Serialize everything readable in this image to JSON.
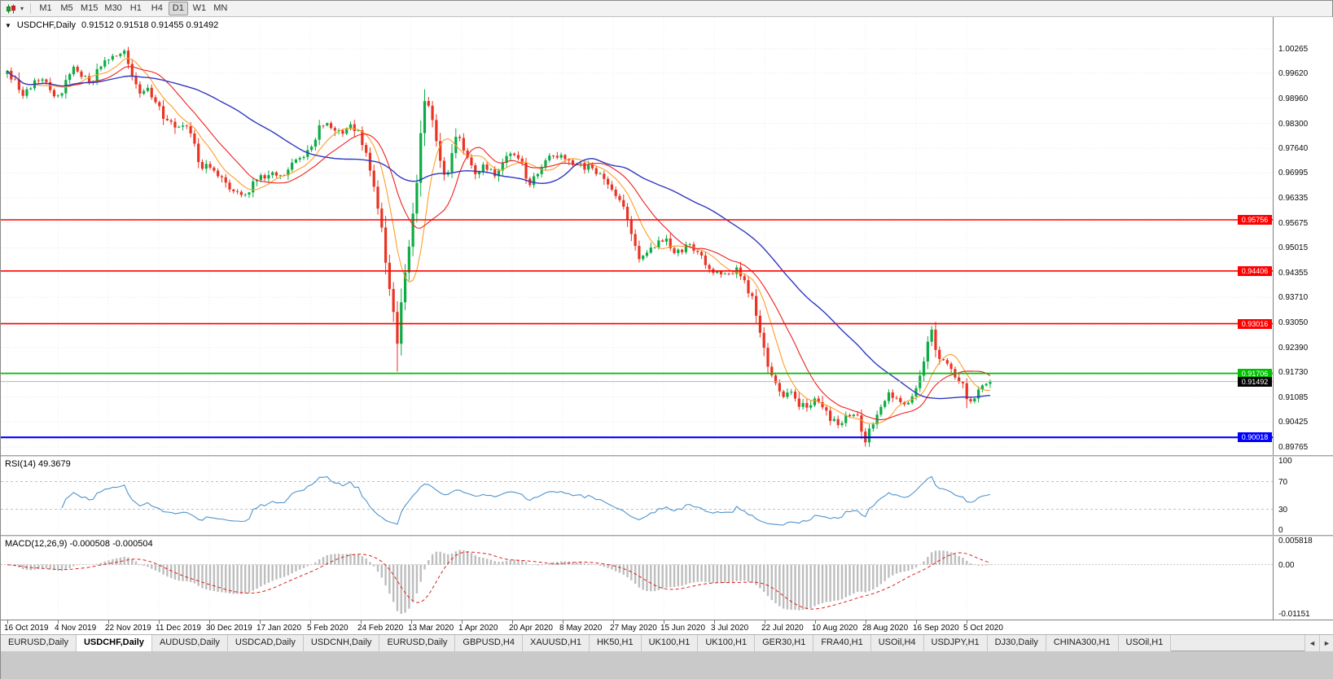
{
  "icons": {
    "collapse_caret": "▼",
    "dropdown_caret": "▾",
    "scroll_left": "◄",
    "scroll_right": "►"
  },
  "toolbar": {
    "timeframes": [
      "M1",
      "M5",
      "M15",
      "M30",
      "H1",
      "H4",
      "D1",
      "W1",
      "MN"
    ],
    "active": "D1"
  },
  "chart": {
    "title": "USDCHF,Daily",
    "ohlc": "0.91512 0.91518 0.91455 0.91492",
    "price_axis": [
      "1.00265",
      "0.99620",
      "0.98960",
      "0.98300",
      "0.97640",
      "0.96995",
      "0.96335",
      "0.95675",
      "0.95015",
      "0.94355",
      "0.93710",
      "0.93050",
      "0.92390",
      "0.91730",
      "0.91085",
      "0.90425",
      "0.89765"
    ]
  },
  "rsi": {
    "label": "RSI(14) 49.3679",
    "period": 14,
    "current": 49.3679,
    "axis": [
      "100",
      "70",
      "30",
      "0"
    ],
    "levels": [
      70,
      30
    ]
  },
  "macd": {
    "label": "MACD(12,26,9) -0.000508 -0.000504",
    "fast": 12,
    "slow": 26,
    "signal": 9,
    "current": [
      -0.000508,
      -0.000504
    ],
    "axis": [
      "0.005818",
      "0.00",
      "-0.01151"
    ]
  },
  "time_axis": [
    "16 Oct 2019",
    "4 Nov 2019",
    "22 Nov 2019",
    "11 Dec 2019",
    "30 Dec 2019",
    "17 Jan 2020",
    "5 Feb 2020",
    "24 Feb 2020",
    "13 Mar 2020",
    "1 Apr 2020",
    "20 Apr 2020",
    "8 May 2020",
    "27 May 2020",
    "15 Jun 2020",
    "3 Jul 2020",
    "22 Jul 2020",
    "10 Aug 2020",
    "28 Aug 2020",
    "16 Sep 2020",
    "5 Oct 2020"
  ],
  "tabs": {
    "items": [
      "EURUSD,Daily",
      "USDCHF,Daily",
      "AUDUSD,Daily",
      "USDCAD,Daily",
      "USDCNH,Daily",
      "EURUSD,Daily",
      "GBPUSD,H4",
      "XAUUSD,H1",
      "HK50,H1",
      "UK100,H1",
      "UK100,H1",
      "GER30,H1",
      "FRA40,H1",
      "USOil,H4",
      "USDJPY,H1",
      "DJ30,Daily",
      "CHINA300,H1",
      "USOil,H1"
    ],
    "active_index": 1
  },
  "chart_data": {
    "type": "candlestick",
    "symbol": "USDCHF",
    "period": "Daily",
    "ohlc": {
      "open": 0.91512,
      "high": 0.91518,
      "low": 0.91455,
      "close": 0.91492
    },
    "current_price": 0.91492,
    "current_price_label": "0.91492",
    "price_range_shown": [
      0.8955,
      1.01103
    ],
    "n_candles": 253,
    "close_path": [
      [
        0.0,
        0.996
      ],
      [
        0.01,
        0.993
      ],
      [
        0.018,
        0.9905
      ],
      [
        0.027,
        0.9945
      ],
      [
        0.035,
        0.9952
      ],
      [
        0.043,
        0.992
      ],
      [
        0.051,
        0.9895
      ],
      [
        0.06,
        0.994
      ],
      [
        0.068,
        0.9975
      ],
      [
        0.076,
        0.9955
      ],
      [
        0.084,
        0.9938
      ],
      [
        0.093,
        0.997
      ],
      [
        0.101,
        1.0005
      ],
      [
        0.11,
        1.0015
      ],
      [
        0.118,
        1.0022
      ],
      [
        0.126,
        0.996
      ],
      [
        0.134,
        0.991
      ],
      [
        0.142,
        0.9928
      ],
      [
        0.151,
        0.989
      ],
      [
        0.159,
        0.985
      ],
      [
        0.171,
        0.982
      ],
      [
        0.184,
        0.9828
      ],
      [
        0.192,
        0.976
      ],
      [
        0.196,
        0.97
      ],
      [
        0.205,
        0.972
      ],
      [
        0.213,
        0.97
      ],
      [
        0.221,
        0.9672
      ],
      [
        0.229,
        0.966
      ],
      [
        0.238,
        0.9645
      ],
      [
        0.242,
        0.9637
      ],
      [
        0.25,
        0.967
      ],
      [
        0.258,
        0.969
      ],
      [
        0.267,
        0.9698
      ],
      [
        0.275,
        0.9695
      ],
      [
        0.283,
        0.97
      ],
      [
        0.292,
        0.9733
      ],
      [
        0.3,
        0.9745
      ],
      [
        0.308,
        0.9755
      ],
      [
        0.316,
        0.9812
      ],
      [
        0.325,
        0.9835
      ],
      [
        0.333,
        0.9818
      ],
      [
        0.341,
        0.9805
      ],
      [
        0.35,
        0.983
      ],
      [
        0.358,
        0.98
      ],
      [
        0.366,
        0.9745
      ],
      [
        0.374,
        0.9649
      ],
      [
        0.381,
        0.955
      ],
      [
        0.387,
        0.943
      ],
      [
        0.392,
        0.934
      ],
      [
        0.397,
        0.9255
      ],
      [
        0.402,
        0.938
      ],
      [
        0.407,
        0.948
      ],
      [
        0.412,
        0.9573
      ],
      [
        0.417,
        0.968
      ],
      [
        0.421,
        0.982
      ],
      [
        0.425,
        0.99
      ],
      [
        0.43,
        0.9868
      ],
      [
        0.436,
        0.979
      ],
      [
        0.441,
        0.9723
      ],
      [
        0.447,
        0.968
      ],
      [
        0.453,
        0.9755
      ],
      [
        0.458,
        0.9806
      ],
      [
        0.465,
        0.976
      ],
      [
        0.471,
        0.9715
      ],
      [
        0.478,
        0.97
      ],
      [
        0.486,
        0.9725
      ],
      [
        0.494,
        0.9692
      ],
      [
        0.503,
        0.972
      ],
      [
        0.511,
        0.9745
      ],
      [
        0.519,
        0.9752
      ],
      [
        0.527,
        0.97
      ],
      [
        0.531,
        0.966
      ],
      [
        0.539,
        0.97
      ],
      [
        0.548,
        0.973
      ],
      [
        0.556,
        0.9745
      ],
      [
        0.565,
        0.9738
      ],
      [
        0.573,
        0.973
      ],
      [
        0.581,
        0.9722
      ],
      [
        0.59,
        0.9715
      ],
      [
        0.598,
        0.97
      ],
      [
        0.606,
        0.9688
      ],
      [
        0.614,
        0.9655
      ],
      [
        0.623,
        0.9627
      ],
      [
        0.631,
        0.9575
      ],
      [
        0.639,
        0.9505
      ],
      [
        0.643,
        0.9465
      ],
      [
        0.651,
        0.949
      ],
      [
        0.66,
        0.951
      ],
      [
        0.668,
        0.953
      ],
      [
        0.676,
        0.95
      ],
      [
        0.684,
        0.9486
      ],
      [
        0.693,
        0.9518
      ],
      [
        0.701,
        0.949
      ],
      [
        0.709,
        0.9465
      ],
      [
        0.718,
        0.9445
      ],
      [
        0.726,
        0.943
      ],
      [
        0.734,
        0.944
      ],
      [
        0.743,
        0.9444
      ],
      [
        0.751,
        0.9405
      ],
      [
        0.759,
        0.936
      ],
      [
        0.768,
        0.925
      ],
      [
        0.776,
        0.9175
      ],
      [
        0.781,
        0.9143
      ],
      [
        0.789,
        0.91
      ],
      [
        0.797,
        0.9122
      ],
      [
        0.805,
        0.909
      ],
      [
        0.813,
        0.9078
      ],
      [
        0.822,
        0.91
      ],
      [
        0.83,
        0.9075
      ],
      [
        0.838,
        0.905
      ],
      [
        0.847,
        0.9035
      ],
      [
        0.855,
        0.906
      ],
      [
        0.863,
        0.9068
      ],
      [
        0.869,
        0.902
      ],
      [
        0.873,
        0.8995
      ],
      [
        0.88,
        0.904
      ],
      [
        0.888,
        0.9068
      ],
      [
        0.896,
        0.9122
      ],
      [
        0.904,
        0.91
      ],
      [
        0.912,
        0.9078
      ],
      [
        0.921,
        0.911
      ],
      [
        0.929,
        0.916
      ],
      [
        0.936,
        0.9255
      ],
      [
        0.94,
        0.9285
      ],
      [
        0.946,
        0.9207
      ],
      [
        0.954,
        0.9196
      ],
      [
        0.962,
        0.9168
      ],
      [
        0.97,
        0.9155
      ],
      [
        0.978,
        0.9095
      ],
      [
        0.986,
        0.9115
      ],
      [
        0.993,
        0.9135
      ],
      [
        1.0,
        0.91492
      ]
    ],
    "wick_overrides": [
      {
        "t": 0.118,
        "high": 1.0026
      },
      {
        "t": 0.397,
        "low": 0.9175
      },
      {
        "t": 0.425,
        "high": 0.992
      },
      {
        "t": 0.873,
        "low": 0.8982
      },
      {
        "t": 0.94,
        "high": 0.9295
      }
    ],
    "hlines": [
      {
        "price": 0.95756,
        "label": "0.95756",
        "color": "#ff0000",
        "width": 1.6
      },
      {
        "price": 0.94406,
        "label": "0.94406",
        "color": "#ff0000",
        "width": 1.6
      },
      {
        "price": 0.93016,
        "label": "0.93016",
        "color": "#ff0000",
        "width": 1.6
      },
      {
        "price": 0.91706,
        "label": "0.91706",
        "color": "#00c000",
        "width": 1.8
      },
      {
        "price": 0.90018,
        "label": "0.90018",
        "color": "#0000ff",
        "width": 2.2
      }
    ],
    "moving_averages": [
      {
        "period": 8,
        "color": "#ff9d2a"
      },
      {
        "period": 16,
        "color": "#ef2020"
      },
      {
        "period": 45,
        "color": "#2f39bf"
      }
    ],
    "colors": {
      "up": "#0cab45",
      "down": "#ea3323",
      "grid": "#e8e8e8",
      "vgrid": "#ededed",
      "rsi": "#4f94cd",
      "rsi_level": "#c0c0c0",
      "macd_hist": "#bdbdbd",
      "macd_signal": "#e02020",
      "bid_line": "#b6b6b6",
      "bid_tag": "#000000"
    }
  }
}
